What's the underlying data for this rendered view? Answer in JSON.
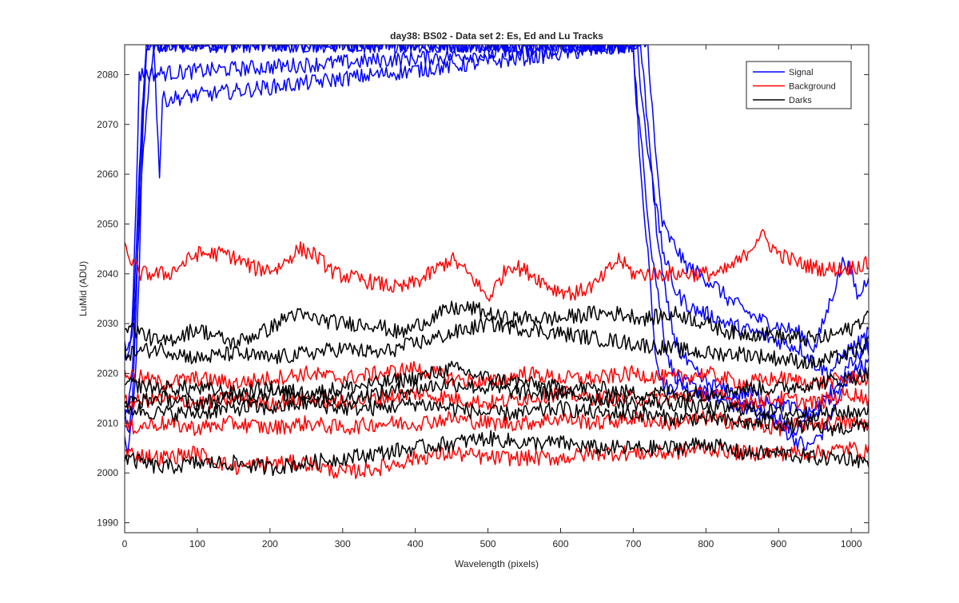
{
  "chart_data": {
    "type": "line",
    "title": "day38: BS02 - Data set 2: Es, Ed and Lu Tracks",
    "xlabel": "Wavelength (pixels)",
    "ylabel": "LuMid (ADU)",
    "xlim": [
      0,
      1024
    ],
    "ylim": [
      1988,
      2086
    ],
    "xticks": [
      0,
      100,
      200,
      300,
      400,
      500,
      600,
      700,
      800,
      900,
      1000
    ],
    "yticks": [
      1990,
      2000,
      2010,
      2020,
      2030,
      2040,
      2050,
      2060,
      2070,
      2080
    ],
    "grid": false,
    "legend_position": "top-right",
    "series": [
      {
        "name": "Signal",
        "color": "#0000ff",
        "traces": [
          {
            "x": [
              0,
              5,
              10,
              15,
              20,
              25,
              30,
              35,
              40,
              45,
              50,
              700,
              710,
              720,
              730,
              740,
              750,
              760,
              780,
              800,
              820,
              850,
              880,
              900,
              920,
              950,
              1000,
              1024
            ],
            "y": [
              2026,
              2024,
              2027,
              2040,
              2060,
              2075,
              2086,
              2086,
              2086,
              2086,
              2086,
              2086,
              2060,
              2045,
              2025,
              2018,
              2017,
              2018,
              2017,
              2016,
              2015,
              2014,
              2012,
              2011,
              2008,
              2012,
              2020,
              2026
            ]
          },
          {
            "x": [
              0,
              5,
              10,
              15,
              20,
              25,
              30,
              35,
              40,
              45,
              700,
              705,
              715,
              725,
              735,
              745,
              755,
              770,
              800,
              830,
              860,
              890,
              920,
              940,
              960,
              980,
              1000,
              1024
            ],
            "y": [
              2012,
              2008,
              2012,
              2030,
              2055,
              2075,
              2086,
              2086,
              2086,
              2086,
              2086,
              2075,
              2060,
              2045,
              2035,
              2025,
              2020,
              2018,
              2016,
              2014,
              2013,
              2011,
              2007,
              2005,
              2008,
              2014,
              2020,
              2022
            ]
          },
          {
            "x": [
              0,
              5,
              10,
              15,
              20,
              25,
              30,
              35,
              40,
              45,
              50,
              720,
              730,
              740,
              750,
              760,
              770,
              790,
              810,
              830,
              850,
              870,
              890,
              910,
              930,
              950,
              970,
              990,
              1000,
              1010,
              1024
            ],
            "y": [
              2006,
              2005,
              2010,
              2020,
              2040,
              2070,
              2086,
              2086,
              2086,
              2086,
              2086,
              2086,
              2065,
              2050,
              2047,
              2045,
              2042,
              2040,
              2038,
              2035,
              2033,
              2031,
              2030,
              2029,
              2028,
              2025,
              2034,
              2043,
              2040,
              2035,
              2040
            ]
          },
          {
            "x": [
              0,
              5,
              10,
              15,
              20,
              710,
              720,
              730,
              740,
              750,
              760,
              780,
              800,
              830,
              850,
              870,
              890,
              910,
              930,
              950,
              970,
              990,
              1010,
              1024
            ],
            "y": [
              2025,
              2022,
              2030,
              2050,
              2080,
              2086,
              2070,
              2055,
              2045,
              2040,
              2036,
              2033,
              2032,
              2030,
              2029,
              2028,
              2027,
              2026,
              2025,
              2022,
              2020,
              2024,
              2026,
              2028
            ]
          },
          {
            "x": [
              0,
              10,
              15,
              20,
              25,
              30,
              35,
              40,
              45,
              48,
              52,
              705,
              715,
              725,
              735,
              745,
              755,
              765,
              780,
              800,
              820,
              840,
              860,
              880,
              900,
              920,
              940,
              960,
              980,
              1000,
              1024
            ],
            "y": [
              2010,
              2018,
              2035,
              2050,
              2065,
              2072,
              2080,
              2086,
              2070,
              2060,
              2075,
              2086,
              2070,
              2060,
              2045,
              2035,
              2028,
              2024,
              2021,
              2018,
              2017,
              2016,
              2016,
              2015,
              2014,
              2013,
              2012,
              2014,
              2018,
              2022,
              2025
            ]
          }
        ]
      },
      {
        "name": "Background",
        "color": "#ff0000",
        "traces": [
          {
            "x": [
              0,
              20,
              60,
              100,
              140,
              180,
              210,
              240,
              260,
              290,
              320,
              350,
              380,
              410,
              450,
              480,
              500,
              530,
              560,
              590,
              620,
              650,
              680,
              700,
              730,
              760,
              790,
              820,
              850,
              875,
              900,
              930,
              960,
              990,
              1024
            ],
            "y": [
              2045,
              2040,
              2040,
              2044,
              2044,
              2041,
              2041,
              2045,
              2044,
              2040,
              2039,
              2038,
              2037,
              2039,
              2043,
              2039,
              2035,
              2042,
              2040,
              2037,
              2036,
              2038,
              2043,
              2040,
              2040,
              2040,
              2040,
              2040,
              2043,
              2048,
              2044,
              2042,
              2041,
              2041,
              2042
            ]
          },
          {
            "x": [
              0,
              50,
              100,
              150,
              200,
              250,
              300,
              350,
              400,
              450,
              500,
              550,
              600,
              650,
              700,
              750,
              800,
              850,
              900,
              950,
              1000,
              1024
            ],
            "y": [
              2020,
              2018,
              2019,
              2018,
              2019,
              2020,
              2019,
              2020,
              2021,
              2019,
              2018,
              2020,
              2019,
              2019,
              2020,
              2019,
              2020,
              2018,
              2019,
              2018,
              2019,
              2019
            ]
          },
          {
            "x": [
              0,
              50,
              100,
              150,
              200,
              250,
              300,
              350,
              400,
              450,
              500,
              550,
              600,
              650,
              700,
              750,
              800,
              850,
              900,
              950,
              1000,
              1024
            ],
            "y": [
              2014,
              2015,
              2014,
              2015,
              2014,
              2015,
              2014,
              2015,
              2016,
              2015,
              2014,
              2015,
              2016,
              2015,
              2015,
              2015,
              2016,
              2014,
              2015,
              2014,
              2016,
              2015
            ]
          },
          {
            "x": [
              0,
              50,
              100,
              150,
              200,
              250,
              300,
              350,
              400,
              450,
              500,
              550,
              600,
              650,
              700,
              750,
              800,
              850,
              900,
              950,
              1000,
              1024
            ],
            "y": [
              2009,
              2010,
              2009,
              2010,
              2009,
              2010,
              2009,
              2010,
              2010,
              2011,
              2010,
              2010,
              2011,
              2010,
              2011,
              2010,
              2011,
              2010,
              2009,
              2010,
              2010,
              2010
            ]
          },
          {
            "x": [
              0,
              50,
              100,
              150,
              200,
              250,
              300,
              350,
              400,
              450,
              500,
              550,
              600,
              650,
              700,
              750,
              800,
              850,
              900,
              950,
              1000,
              1024
            ],
            "y": [
              2004,
              2003,
              2004,
              2001,
              2002,
              2002,
              2000,
              2001,
              2003,
              2004,
              2003,
              2003,
              2003,
              2004,
              2004,
              2004,
              2005,
              2004,
              2004,
              2004,
              2005,
              2004
            ]
          }
        ]
      },
      {
        "name": "Darks",
        "color": "#000000",
        "traces": [
          {
            "x": [
              0,
              50,
              100,
              150,
              200,
              230,
              260,
              300,
              340,
              380,
              420,
              450,
              480,
              520,
              560,
              600,
              640,
              680,
              720,
              760,
              800,
              840,
              880,
              920,
              960,
              1000,
              1024
            ],
            "y": [
              2030,
              2026,
              2029,
              2026,
              2029,
              2032,
              2031,
              2030,
              2030,
              2028,
              2031,
              2033,
              2033,
              2031,
              2031,
              2031,
              2032,
              2032,
              2031,
              2032,
              2030,
              2028,
              2028,
              2027,
              2027,
              2029,
              2032
            ]
          },
          {
            "x": [
              0,
              50,
              100,
              150,
              200,
              250,
              300,
              350,
              400,
              450,
              500,
              550,
              600,
              650,
              700,
              750,
              800,
              850,
              900,
              950,
              1000,
              1024
            ],
            "y": [
              2024,
              2025,
              2023,
              2024,
              2023,
              2024,
              2025,
              2024,
              2026,
              2028,
              2030,
              2029,
              2028,
              2027,
              2026,
              2025,
              2024,
              2024,
              2023,
              2022,
              2024,
              2026
            ]
          },
          {
            "x": [
              0,
              50,
              100,
              150,
              200,
              250,
              300,
              350,
              400,
              450,
              500,
              550,
              600,
              650,
              700,
              750,
              800,
              850,
              900,
              950,
              1000,
              1024
            ],
            "y": [
              2018,
              2017,
              2017,
              2016,
              2017,
              2016,
              2017,
              2018,
              2019,
              2021,
              2019,
              2018,
              2017,
              2017,
              2016,
              2016,
              2016,
              2017,
              2017,
              2018,
              2019,
              2020
            ]
          },
          {
            "x": [
              0,
              50,
              100,
              150,
              200,
              250,
              300,
              350,
              400,
              450,
              500,
              550,
              600,
              650,
              700,
              750,
              800,
              850,
              900,
              950,
              1000,
              1024
            ],
            "y": [
              2014,
              2015,
              2014,
              2015,
              2016,
              2016,
              2015,
              2016,
              2017,
              2018,
              2017,
              2016,
              2016,
              2015,
              2014,
              2014,
              2013,
              2013,
              2012,
              2012,
              2012,
              2013
            ]
          },
          {
            "x": [
              0,
              50,
              100,
              150,
              200,
              250,
              300,
              350,
              400,
              450,
              500,
              550,
              600,
              650,
              700,
              750,
              800,
              850,
              900,
              950,
              1000,
              1024
            ],
            "y": [
              2013,
              2012,
              2012,
              2013,
              2013,
              2014,
              2013,
              2013,
              2014,
              2013,
              2012,
              2012,
              2013,
              2012,
              2012,
              2011,
              2011,
              2010,
              2010,
              2009,
              2009,
              2010
            ]
          },
          {
            "x": [
              0,
              50,
              100,
              150,
              200,
              250,
              300,
              350,
              400,
              450,
              500,
              550,
              600,
              650,
              700,
              750,
              800,
              850,
              900,
              950,
              1000,
              1024
            ],
            "y": [
              2003,
              2001,
              2002,
              2002,
              2001,
              2002,
              2003,
              2004,
              2005,
              2006,
              2007,
              2006,
              2006,
              2005,
              2005,
              2005,
              2006,
              2004,
              2004,
              2003,
              2003,
              2002
            ]
          }
        ]
      }
    ]
  }
}
